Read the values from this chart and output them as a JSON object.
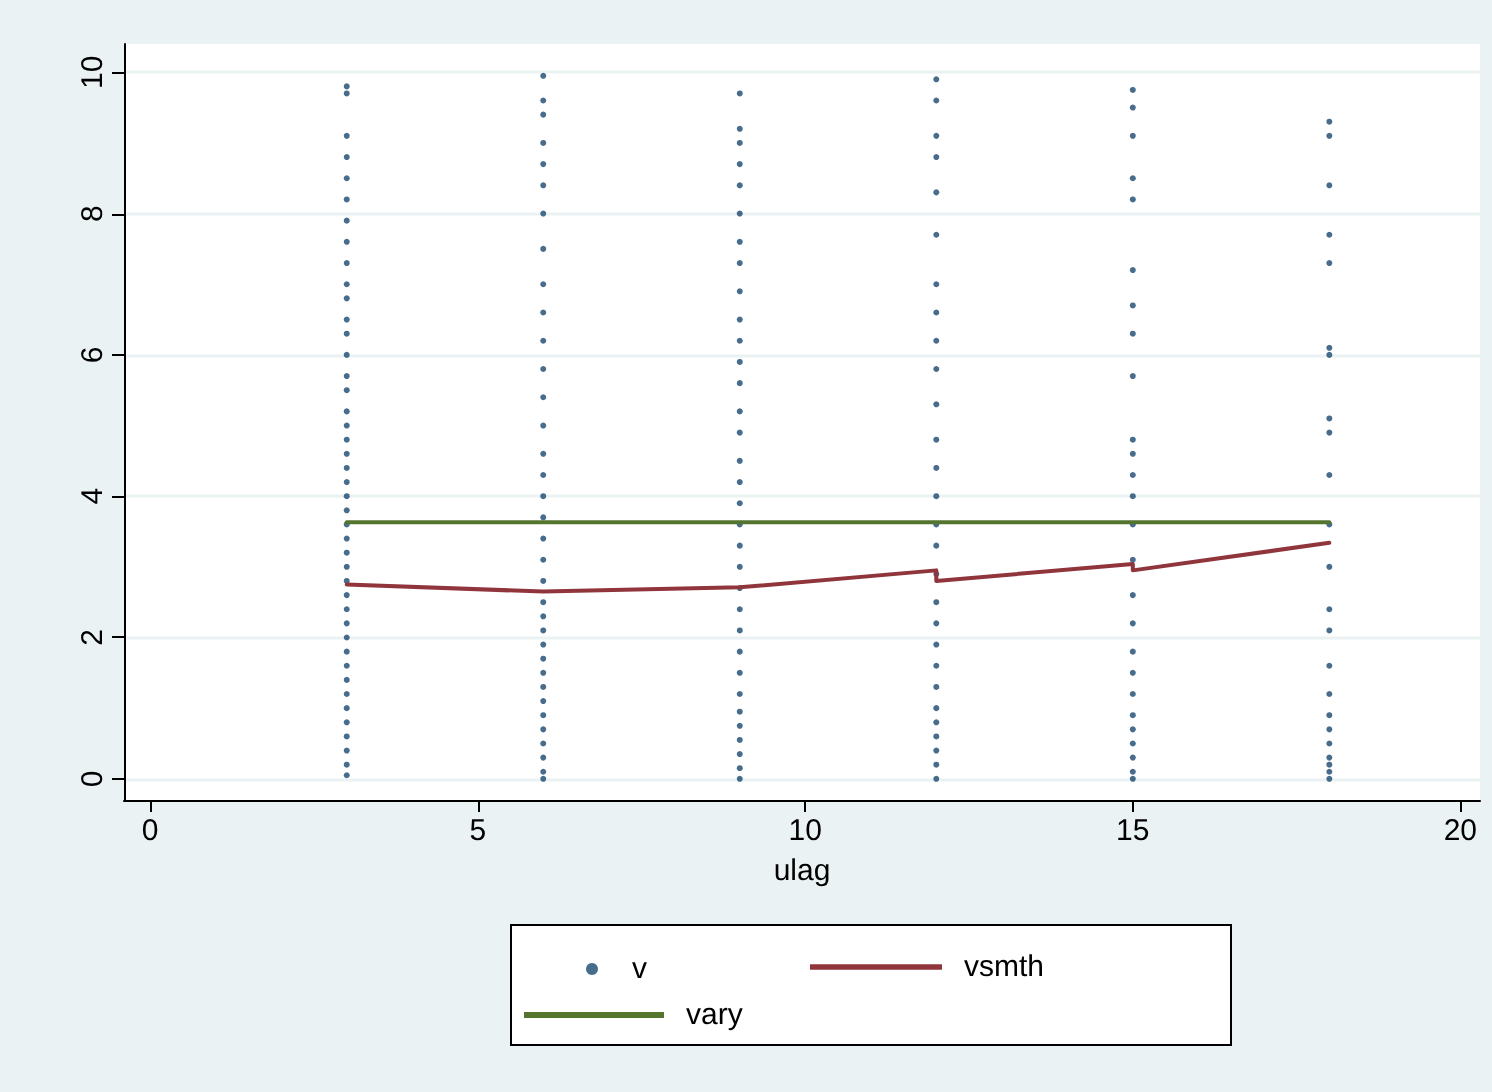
{
  "chart_data": {
    "type": "scatter",
    "xlabel": "ulag",
    "xlim": [
      -0.4,
      20.3
    ],
    "xticks": [
      0,
      5,
      10,
      15,
      20
    ],
    "ylim": [
      -0.3,
      10.4
    ],
    "yticks": [
      0,
      2,
      4,
      6,
      8,
      10
    ],
    "grid": "y",
    "legend": "bottom",
    "series": [
      {
        "name": "v",
        "type": "scatter",
        "marker": "circle",
        "color": "#1a476f",
        "x": [
          3,
          3,
          3,
          3,
          3,
          3,
          3,
          3,
          3,
          3,
          3,
          3,
          3,
          3,
          3,
          3,
          3,
          3,
          3,
          3,
          3,
          3,
          3,
          3,
          3,
          3,
          3,
          3,
          3,
          3,
          3,
          3,
          3,
          3,
          3,
          3,
          3,
          3,
          3,
          3,
          3,
          3,
          3,
          6,
          6,
          6,
          6,
          6,
          6,
          6,
          6,
          6,
          6,
          6,
          6,
          6,
          6,
          6,
          6,
          6,
          6,
          6,
          6,
          6,
          6,
          6,
          6,
          6,
          6,
          6,
          6,
          6,
          6,
          6,
          6,
          6,
          6,
          6,
          9,
          9,
          9,
          9,
          9,
          9,
          9,
          9,
          9,
          9,
          9,
          9,
          9,
          9,
          9,
          9,
          9,
          9,
          9,
          9,
          9,
          9,
          9,
          9,
          9,
          9,
          9,
          9,
          9,
          9,
          9,
          9,
          9,
          12,
          12,
          12,
          12,
          12,
          12,
          12,
          12,
          12,
          12,
          12,
          12,
          12,
          12,
          12,
          12,
          12,
          12,
          12,
          12,
          12,
          12,
          12,
          12,
          12,
          12,
          12,
          12,
          15,
          15,
          15,
          15,
          15,
          15,
          15,
          15,
          15,
          15,
          15,
          15,
          15,
          15,
          15,
          15,
          15,
          15,
          15,
          15,
          15,
          15,
          15,
          15,
          15,
          15,
          18,
          18,
          18,
          18,
          18,
          18,
          18,
          18,
          18,
          18,
          18,
          18,
          18,
          18,
          18,
          18,
          18,
          18,
          18,
          18,
          18,
          18,
          18
        ],
        "values": [
          0.05,
          0.2,
          0.4,
          0.6,
          0.8,
          1.0,
          1.2,
          1.4,
          1.6,
          1.8,
          2.0,
          2.2,
          2.4,
          2.6,
          2.8,
          3.0,
          3.2,
          3.4,
          3.6,
          3.8,
          4.0,
          4.2,
          4.4,
          4.6,
          4.8,
          5.0,
          5.2,
          5.5,
          5.7,
          6.0,
          6.3,
          6.5,
          6.8,
          7.0,
          7.3,
          7.6,
          7.9,
          8.2,
          8.5,
          8.8,
          9.1,
          9.7,
          9.8,
          0,
          0.1,
          0.3,
          0.5,
          0.7,
          0.9,
          1.1,
          1.3,
          1.5,
          1.7,
          1.9,
          2.1,
          2.3,
          2.5,
          2.8,
          3.1,
          3.4,
          3.7,
          4.0,
          4.3,
          4.6,
          5.0,
          5.4,
          5.8,
          6.2,
          6.6,
          7.0,
          7.5,
          8.0,
          8.4,
          8.7,
          9.0,
          9.4,
          9.6,
          9.95,
          0,
          0.15,
          0.35,
          0.55,
          0.75,
          0.95,
          1.2,
          1.5,
          1.8,
          2.1,
          2.4,
          2.7,
          3.0,
          3.3,
          3.6,
          3.9,
          4.2,
          4.5,
          4.9,
          5.2,
          5.6,
          5.9,
          6.2,
          6.5,
          6.9,
          7.3,
          7.6,
          8.0,
          8.4,
          8.7,
          9.0,
          9.2,
          9.7,
          0,
          0.2,
          0.4,
          0.6,
          0.8,
          1.0,
          1.3,
          1.6,
          1.9,
          2.2,
          2.5,
          2.9,
          3.3,
          3.6,
          4.0,
          4.4,
          4.8,
          5.3,
          5.8,
          6.2,
          6.6,
          7.0,
          7.7,
          8.3,
          8.8,
          9.1,
          9.6,
          9.9,
          0,
          0.1,
          0.3,
          0.5,
          0.7,
          0.9,
          1.2,
          1.5,
          1.8,
          2.2,
          2.6,
          3.1,
          3.6,
          4.0,
          4.3,
          4.6,
          4.8,
          5.7,
          6.3,
          6.7,
          7.2,
          8.2,
          8.5,
          9.1,
          9.5,
          9.75,
          0,
          0.1,
          0.2,
          0.3,
          0.5,
          0.7,
          0.9,
          1.2,
          1.6,
          2.1,
          2.4,
          3.0,
          3.6,
          4.3,
          4.9,
          5.1,
          6.0,
          6.1,
          7.3,
          7.7,
          8.4,
          9.1,
          9.3
        ]
      },
      {
        "name": "vsmth",
        "type": "line",
        "marker": "none",
        "line_style": "solid",
        "color": "#90353b",
        "x": [
          3,
          6,
          9,
          12,
          12,
          15,
          15,
          18
        ],
        "values": [
          2.75,
          2.65,
          2.71,
          2.95,
          2.8,
          3.04,
          2.95,
          3.34
        ]
      },
      {
        "name": "vary",
        "type": "line",
        "marker": "none",
        "line_style": "solid",
        "color": "#55752f",
        "x": [
          3,
          18
        ],
        "values": [
          3.63,
          3.63
        ]
      }
    ]
  }
}
